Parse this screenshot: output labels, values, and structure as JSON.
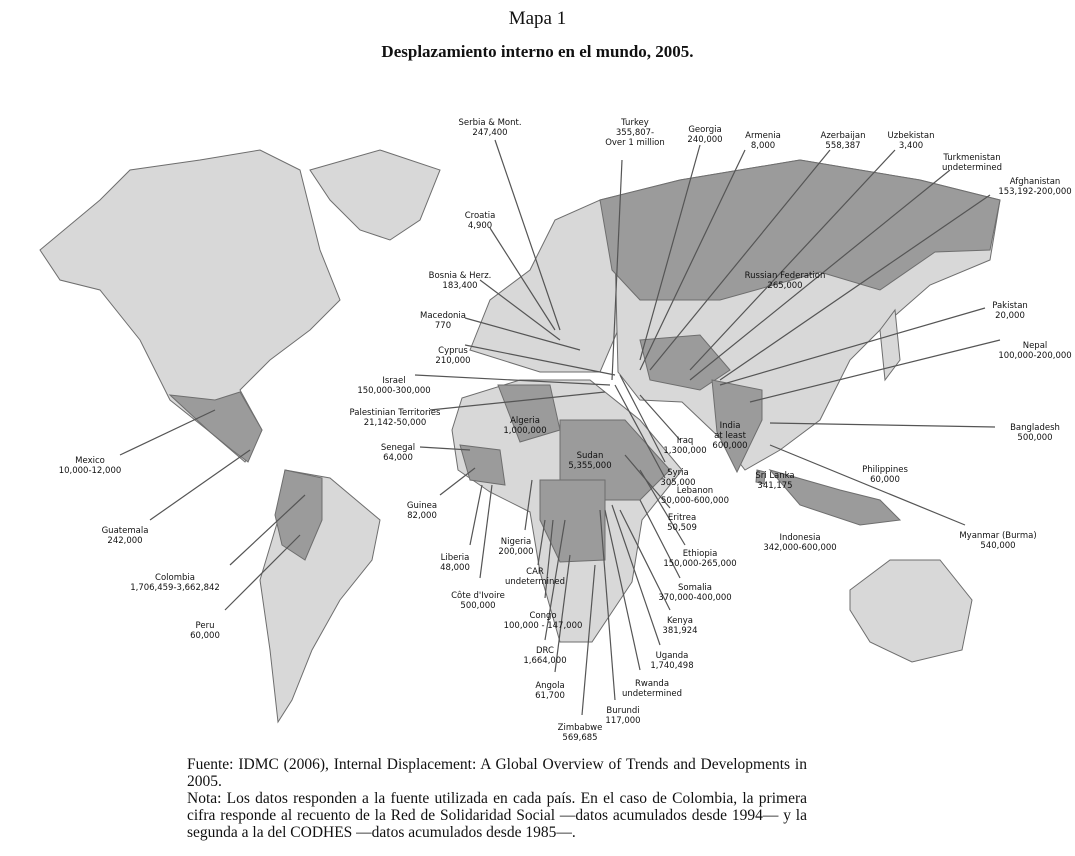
{
  "header": {
    "map_number": "Mapa 1",
    "title": "Desplazamiento interno en el mundo, 2005."
  },
  "map": {
    "colors": {
      "affected": "#9b9b9b",
      "other_land": "#d8d8d8",
      "border": "#6e6e6e",
      "leader": "#555555",
      "water": "#ffffff"
    },
    "countries": [
      {
        "name": "Serbia & Mont.",
        "value": "247,400"
      },
      {
        "name": "Turkey",
        "value": "355,807-",
        "value2": "Over 1 million"
      },
      {
        "name": "Georgia",
        "value": "240,000"
      },
      {
        "name": "Armenia",
        "value": "8,000"
      },
      {
        "name": "Azerbaijan",
        "value": "558,387"
      },
      {
        "name": "Uzbekistan",
        "value": "3,400"
      },
      {
        "name": "Turkmenistan",
        "value": "undetermined"
      },
      {
        "name": "Afghanistan",
        "value": "153,192-200,000"
      },
      {
        "name": "Croatia",
        "value": "4,900"
      },
      {
        "name": "Bosnia & Herz.",
        "value": "183,400"
      },
      {
        "name": "Macedonia",
        "value": "770"
      },
      {
        "name": "Cyprus",
        "value": "210,000"
      },
      {
        "name": "Israel",
        "value": "150,000-300,000"
      },
      {
        "name": "Palestinian Territories",
        "value": "21,142-50,000"
      },
      {
        "name": "Senegal",
        "value": "64,000"
      },
      {
        "name": "Mexico",
        "value": "10,000-12,000"
      },
      {
        "name": "Guatemala",
        "value": "242,000"
      },
      {
        "name": "Colombia",
        "value": "1,706,459-3,662,842"
      },
      {
        "name": "Peru",
        "value": "60,000"
      },
      {
        "name": "Guinea",
        "value": "82,000"
      },
      {
        "name": "Liberia",
        "value": "48,000"
      },
      {
        "name": "Côte d'Ivoire",
        "value": "500,000"
      },
      {
        "name": "Nigeria",
        "value": "200,000"
      },
      {
        "name": "CAR",
        "value": "undetermined"
      },
      {
        "name": "Congo",
        "value": "100,000 - 147,000"
      },
      {
        "name": "DRC",
        "value": "1,664,000"
      },
      {
        "name": "Angola",
        "value": "61,700"
      },
      {
        "name": "Zimbabwe",
        "value": "569,685"
      },
      {
        "name": "Burundi",
        "value": "117,000"
      },
      {
        "name": "Rwanda",
        "value": "undetermined"
      },
      {
        "name": "Uganda",
        "value": "1,740,498"
      },
      {
        "name": "Kenya",
        "value": "381,924"
      },
      {
        "name": "Somalia",
        "value": "370,000-400,000"
      },
      {
        "name": "Ethiopia",
        "value": "150,000-265,000"
      },
      {
        "name": "Eritrea",
        "value": "50,509"
      },
      {
        "name": "Lebanon",
        "value": "50,000-600,000"
      },
      {
        "name": "Syria",
        "value": "305,000"
      },
      {
        "name": "Iraq",
        "value": "1,300,000"
      },
      {
        "name": "Sudan",
        "value": "5,355,000"
      },
      {
        "name": "Algeria",
        "value": "1,000,000"
      },
      {
        "name": "India",
        "value": "at least",
        "value2": "600,000"
      },
      {
        "name": "Russian Federation",
        "value": "265,000"
      },
      {
        "name": "Pakistan",
        "value": "20,000"
      },
      {
        "name": "Nepal",
        "value": "100,000-200,000"
      },
      {
        "name": "Bangladesh",
        "value": "500,000"
      },
      {
        "name": "Sri Lanka",
        "value": "341,175"
      },
      {
        "name": "Philippines",
        "value": "60,000"
      },
      {
        "name": "Myanmar (Burma)",
        "value": "540,000"
      },
      {
        "name": "Indonesia",
        "value": "342,000-600,000"
      }
    ]
  },
  "footer": {
    "source": "Fuente: IDMC (2006), Internal Displacement: A Global Overview of Trends and Developments in 2005.",
    "note": "Nota: Los datos responden a la fuente utilizada en cada país. En el caso de Colombia, la primera cifra responde al recuento de la Red de Solidaridad Social —datos acumulados desde 1994— y la segunda a la del CODHES —datos acumulados desde 1985—."
  }
}
